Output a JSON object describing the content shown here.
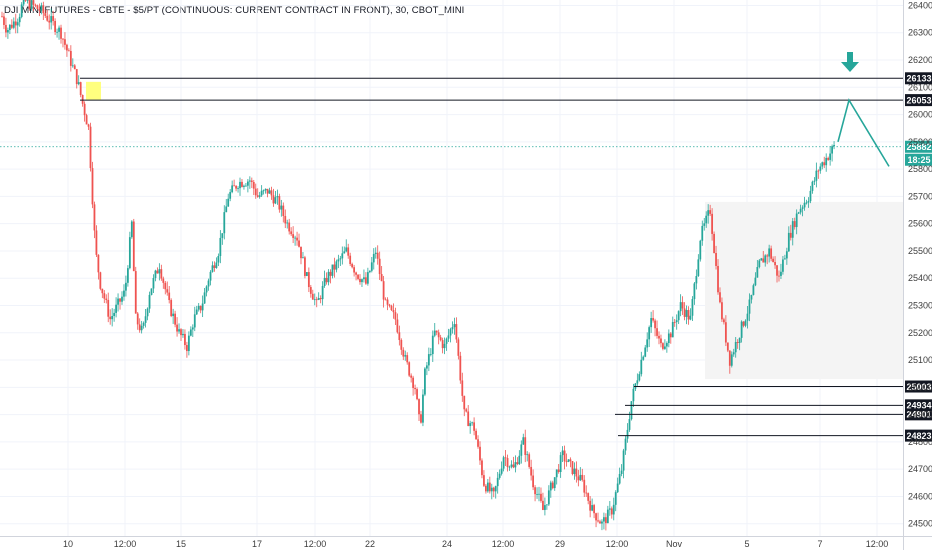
{
  "header": {
    "title": "DJI MINI FUTURES - CBTE - $5/PT (CONTINUOUS: CURRENT CONTRACT IN FRONT), 30, CBOT_MINI"
  },
  "price_tags": {
    "current_price": "25882",
    "countdown": "18:25"
  },
  "colors": {
    "up": "#26a69a",
    "down": "#ef5350",
    "level_line": "#131722",
    "zone_fill": "#f4f4f4",
    "highlight": "#ffff7f",
    "projection": "#26a69a",
    "current_price_tag": "#26a69a",
    "grid": "#f0f3fa"
  },
  "chart_data": {
    "type": "candlestick",
    "title": "DJI MINI FUTURES - CBTE - $5/PT (CONTINUOUS: CURRENT CONTRACT IN FRONT), 30, CBOT_MINI",
    "timeframe": "30",
    "ylim": [
      24455,
      26420
    ],
    "y_ticks": [
      24500,
      24600,
      24700,
      24800,
      24900,
      25000,
      25100,
      25200,
      25300,
      25400,
      25500,
      25600,
      25700,
      25800,
      25900,
      26000,
      26100,
      26200,
      26300,
      26400
    ],
    "x_ticks": [
      "10",
      "12:00",
      "15",
      "17",
      "12:00",
      "22",
      "24",
      "12:00",
      "29",
      "12:00",
      "Nov",
      "5",
      "7",
      "12:00"
    ],
    "levels": [
      {
        "label": "26133",
        "value": 26133
      },
      {
        "label": "26053",
        "value": 26053
      },
      {
        "label": "25003",
        "value": 25003
      },
      {
        "label": "24934",
        "value": 24934
      },
      {
        "label": "24901",
        "value": 24901
      },
      {
        "label": "24823",
        "value": 24823
      }
    ],
    "current_price": 25882,
    "zone": {
      "from": 25030,
      "to": 25680
    },
    "highlight_zone": {
      "from": 26055,
      "to": 26120
    },
    "projection": [
      25900,
      26053,
      25810
    ],
    "price_path": [
      [
        0,
        26360
      ],
      [
        0.5,
        26310
      ],
      [
        1,
        26330
      ],
      [
        1.7,
        26360
      ],
      [
        2.2,
        26420
      ],
      [
        4,
        26380
      ],
      [
        6,
        26300
      ],
      [
        7.7,
        26120
      ],
      [
        8.2,
        26040
      ],
      [
        8.8,
        25950
      ],
      [
        9.5,
        25500
      ],
      [
        10,
        25380
      ],
      [
        11,
        25250
      ],
      [
        12.5,
        25350
      ],
      [
        13.2,
        25600
      ],
      [
        13.6,
        25250
      ],
      [
        14.3,
        25200
      ],
      [
        15,
        25350
      ],
      [
        16,
        25450
      ],
      [
        17,
        25300
      ],
      [
        18,
        25200
      ],
      [
        18.8,
        25150
      ],
      [
        19.5,
        25250
      ],
      [
        20.3,
        25300
      ],
      [
        21,
        25400
      ],
      [
        22,
        25500
      ],
      [
        23,
        25700
      ],
      [
        24,
        25750
      ],
      [
        25.2,
        25760
      ],
      [
        26,
        25700
      ],
      [
        27,
        25720
      ],
      [
        28,
        25680
      ],
      [
        29,
        25600
      ],
      [
        30,
        25550
      ],
      [
        31,
        25400
      ],
      [
        32,
        25300
      ],
      [
        33,
        25400
      ],
      [
        34,
        25450
      ],
      [
        35,
        25500
      ],
      [
        36,
        25420
      ],
      [
        37,
        25380
      ],
      [
        38,
        25500
      ],
      [
        39,
        25300
      ],
      [
        40,
        25250
      ],
      [
        41,
        25100
      ],
      [
        42,
        25000
      ],
      [
        42.5,
        24850
      ],
      [
        43,
        25050
      ],
      [
        44,
        25200
      ],
      [
        45,
        25150
      ],
      [
        46,
        25250
      ],
      [
        47,
        24900
      ],
      [
        48,
        24850
      ],
      [
        49,
        24650
      ],
      [
        50,
        24600
      ],
      [
        51,
        24750
      ],
      [
        52,
        24700
      ],
      [
        53,
        24800
      ],
      [
        54,
        24650
      ],
      [
        55,
        24550
      ],
      [
        56,
        24650
      ],
      [
        57,
        24750
      ],
      [
        58,
        24700
      ],
      [
        59,
        24650
      ],
      [
        60,
        24550
      ],
      [
        61,
        24500
      ],
      [
        62,
        24550
      ],
      [
        63,
        24700
      ],
      [
        64,
        24950
      ],
      [
        65,
        25100
      ],
      [
        66,
        25250
      ],
      [
        67,
        25150
      ],
      [
        68,
        25200
      ],
      [
        69,
        25300
      ],
      [
        70,
        25250
      ],
      [
        71,
        25550
      ],
      [
        72,
        25650
      ],
      [
        73,
        25300
      ],
      [
        74,
        25100
      ],
      [
        75,
        25200
      ],
      [
        76,
        25300
      ],
      [
        77,
        25450
      ],
      [
        78,
        25500
      ],
      [
        79,
        25400
      ],
      [
        80,
        25550
      ],
      [
        81,
        25650
      ],
      [
        82,
        25700
      ],
      [
        83,
        25800
      ],
      [
        84,
        25850
      ],
      [
        84.6,
        25882
      ]
    ]
  }
}
